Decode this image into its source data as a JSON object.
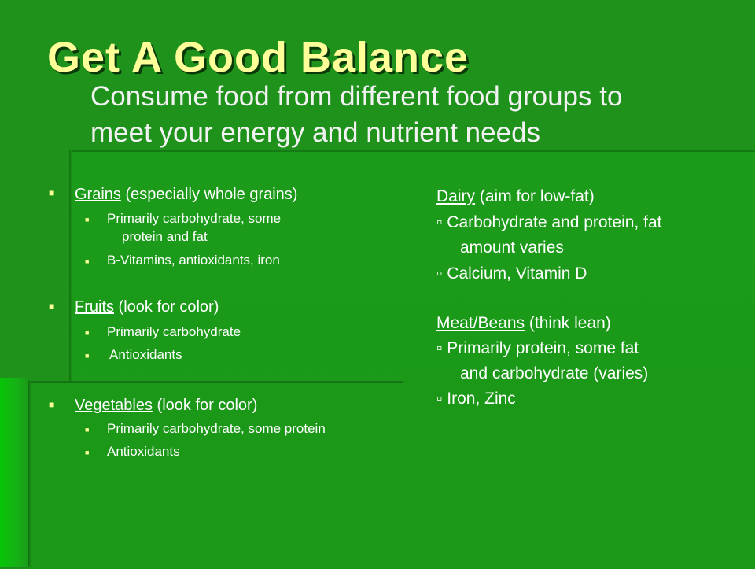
{
  "slide": {
    "title": "Get A Good Balance",
    "subtitle_line1": "Consume food from different food groups to",
    "subtitle_line2": "meet your energy and nutrient needs"
  },
  "left": {
    "grains": {
      "name": "Grains",
      "note": " (especially whole grains)",
      "items": [
        "Primarily carbohydrate, some",
        "protein and fat",
        "B-Vitamins, antioxidants, iron"
      ]
    },
    "fruits": {
      "name": "Fruits",
      "note": " (look for color)",
      "items": [
        "Primarily carbohydrate",
        " Antioxidants"
      ]
    },
    "vegetables": {
      "name": "Vegetables",
      "note": " (look for color)",
      "items": [
        "Primarily carbohydrate, some protein",
        "Antioxidants"
      ]
    }
  },
  "right": {
    "dairy": {
      "name": "Dairy",
      "note": " (aim for low-fat)",
      "line1": "▫ Carbohydrate and protein, fat",
      "line2": "amount varies",
      "line3": "▫ Calcium, Vitamin D"
    },
    "meat": {
      "name": "Meat/Beans",
      "note": " (think lean)",
      "line1": "▫ Primarily protein, some fat",
      "line2": "and carbohydrate (varies)",
      "line3": "▫ Iron, Zinc"
    }
  },
  "colors": {
    "background": "#1f921c",
    "title": "#ffff99",
    "bullet": "#ffff99",
    "text": "#ffffff"
  },
  "icons": {
    "bullet": "square-bullet-icon"
  }
}
